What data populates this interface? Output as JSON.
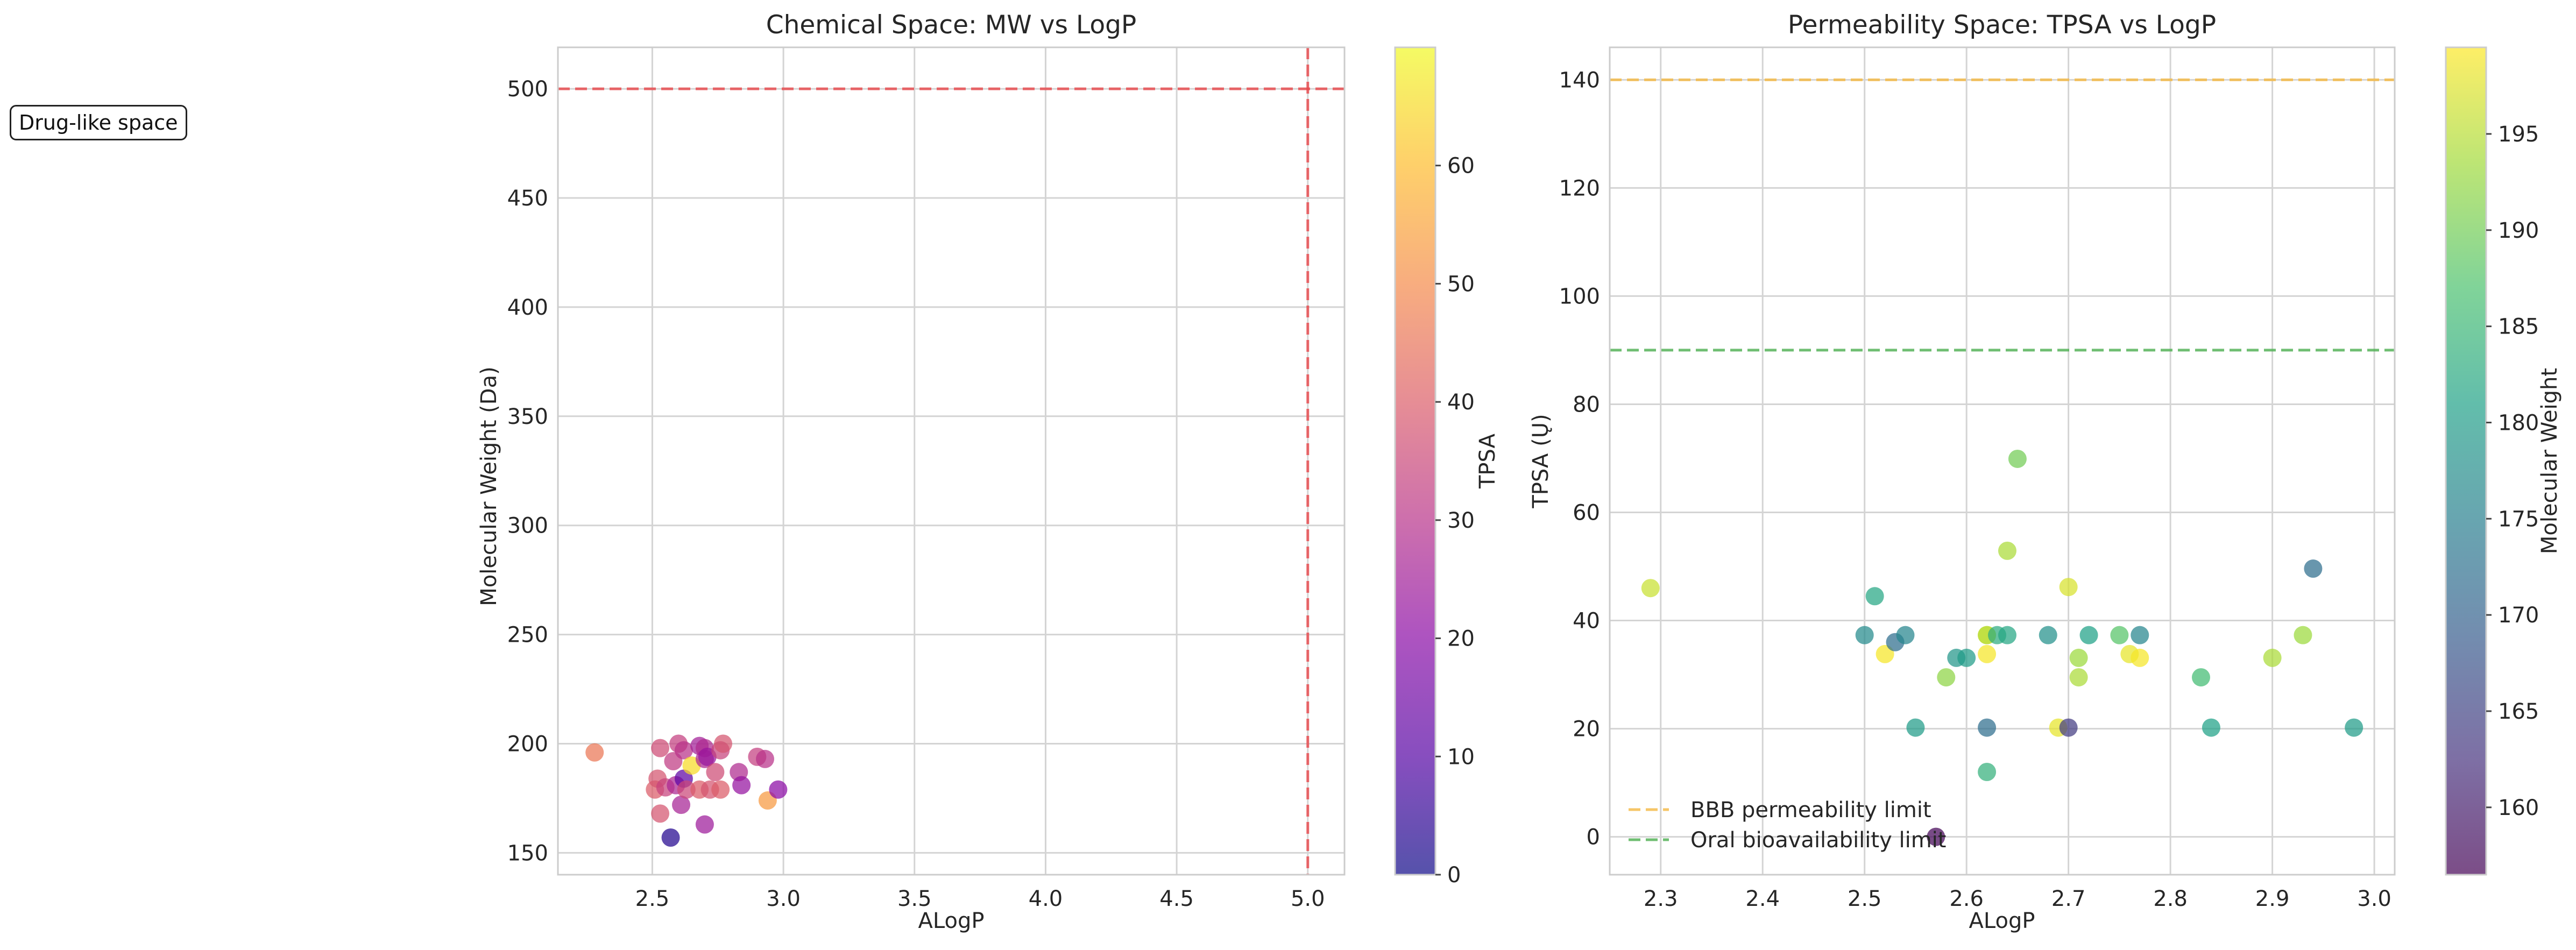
{
  "annotation": "Drug-like space",
  "chart_data": [
    {
      "type": "scatter",
      "title": "Chemical Space: MW vs LogP",
      "xlabel": "ALogP",
      "ylabel": "Molecular Weight (Da)",
      "xlim": [
        2.14,
        5.14
      ],
      "ylim": [
        140,
        519
      ],
      "xticks": [
        "2.5",
        "3.0",
        "3.5",
        "4.0",
        "4.5",
        "5.0"
      ],
      "yticks": [
        "150",
        "200",
        "250",
        "300",
        "350",
        "400",
        "450",
        "500"
      ],
      "grid": true,
      "colormap": "plasma",
      "colorbar": {
        "label": "TPSA",
        "range": [
          0,
          70
        ],
        "ticks": [
          "0",
          "10",
          "20",
          "30",
          "40",
          "50",
          "60"
        ]
      },
      "reference_lines": [
        {
          "orientation": "horizontal",
          "value": 500,
          "color": "#e8464a"
        },
        {
          "orientation": "vertical",
          "value": 5.0,
          "color": "#e8464a"
        }
      ],
      "points": [
        {
          "x": 2.28,
          "y": 196,
          "c": 46
        },
        {
          "x": 2.51,
          "y": 179,
          "c": 40
        },
        {
          "x": 2.52,
          "y": 184,
          "c": 38
        },
        {
          "x": 2.53,
          "y": 198,
          "c": 36
        },
        {
          "x": 2.53,
          "y": 168,
          "c": 38
        },
        {
          "x": 2.55,
          "y": 180,
          "c": 34
        },
        {
          "x": 2.57,
          "y": 157,
          "c": 3
        },
        {
          "x": 2.58,
          "y": 192,
          "c": 32
        },
        {
          "x": 2.59,
          "y": 181,
          "c": 27
        },
        {
          "x": 2.6,
          "y": 200,
          "c": 33
        },
        {
          "x": 2.61,
          "y": 172,
          "c": 26
        },
        {
          "x": 2.62,
          "y": 197,
          "c": 30
        },
        {
          "x": 2.62,
          "y": 184,
          "c": 12
        },
        {
          "x": 2.63,
          "y": 179,
          "c": 35
        },
        {
          "x": 2.65,
          "y": 190,
          "c": 65
        },
        {
          "x": 2.68,
          "y": 199,
          "c": 25
        },
        {
          "x": 2.68,
          "y": 179,
          "c": 40
        },
        {
          "x": 2.7,
          "y": 163,
          "c": 24
        },
        {
          "x": 2.7,
          "y": 198,
          "c": 28
        },
        {
          "x": 2.7,
          "y": 193,
          "c": 27
        },
        {
          "x": 2.71,
          "y": 194,
          "c": 23
        },
        {
          "x": 2.72,
          "y": 179,
          "c": 38
        },
        {
          "x": 2.74,
          "y": 187,
          "c": 36
        },
        {
          "x": 2.76,
          "y": 197,
          "c": 34
        },
        {
          "x": 2.77,
          "y": 200,
          "c": 38
        },
        {
          "x": 2.76,
          "y": 179,
          "c": 40
        },
        {
          "x": 2.83,
          "y": 187,
          "c": 28
        },
        {
          "x": 2.84,
          "y": 181,
          "c": 22
        },
        {
          "x": 2.9,
          "y": 194,
          "c": 33
        },
        {
          "x": 2.93,
          "y": 193,
          "c": 30
        },
        {
          "x": 2.94,
          "y": 174,
          "c": 53
        },
        {
          "x": 2.98,
          "y": 179,
          "c": 20
        }
      ]
    },
    {
      "type": "scatter",
      "title": "Permeability Space: TPSA vs LogP",
      "xlabel": "ALogP",
      "ylabel": "TPSA (Ų)",
      "xlim": [
        2.25,
        3.02
      ],
      "ylim": [
        -7,
        146
      ],
      "xticks": [
        "2.3",
        "2.4",
        "2.5",
        "2.6",
        "2.7",
        "2.8",
        "2.9",
        "3.0"
      ],
      "yticks": [
        "0",
        "20",
        "40",
        "60",
        "80",
        "100",
        "120",
        "140"
      ],
      "grid": true,
      "colormap": "viridis",
      "colorbar": {
        "label": "Molecular Weight",
        "range": [
          156.5,
          199.5
        ],
        "ticks": [
          "160",
          "165",
          "170",
          "175",
          "180",
          "185",
          "190",
          "195"
        ]
      },
      "reference_lines": [
        {
          "orientation": "horizontal",
          "value": 140,
          "color": "#f5b942",
          "label": "BBB permeability limit"
        },
        {
          "orientation": "horizontal",
          "value": 90,
          "color": "#4caf50",
          "label": "Oral bioavailability limit"
        }
      ],
      "legend": "lower-left",
      "points": [
        {
          "x": 2.29,
          "y": 46,
          "c": 196
        },
        {
          "x": 2.5,
          "y": 37.3,
          "c": 177
        },
        {
          "x": 2.51,
          "y": 44.5,
          "c": 182
        },
        {
          "x": 2.52,
          "y": 33.8,
          "c": 199
        },
        {
          "x": 2.53,
          "y": 36,
          "c": 172
        },
        {
          "x": 2.54,
          "y": 37.3,
          "c": 176
        },
        {
          "x": 2.55,
          "y": 20.2,
          "c": 180
        },
        {
          "x": 2.58,
          "y": 29.5,
          "c": 192
        },
        {
          "x": 2.59,
          "y": 33.1,
          "c": 179
        },
        {
          "x": 2.6,
          "y": 33.1,
          "c": 180
        },
        {
          "x": 2.57,
          "y": 0,
          "c": 157
        },
        {
          "x": 2.62,
          "y": 33.8,
          "c": 199
        },
        {
          "x": 2.62,
          "y": 37.3,
          "c": 196
        },
        {
          "x": 2.62,
          "y": 37.3,
          "c": 195
        },
        {
          "x": 2.62,
          "y": 20.2,
          "c": 172
        },
        {
          "x": 2.62,
          "y": 12,
          "c": 184
        },
        {
          "x": 2.63,
          "y": 37.3,
          "c": 183
        },
        {
          "x": 2.64,
          "y": 37.3,
          "c": 182
        },
        {
          "x": 2.64,
          "y": 52.9,
          "c": 194
        },
        {
          "x": 2.65,
          "y": 69.9,
          "c": 190
        },
        {
          "x": 2.68,
          "y": 37.3,
          "c": 178
        },
        {
          "x": 2.69,
          "y": 20.2,
          "c": 198
        },
        {
          "x": 2.7,
          "y": 20.2,
          "c": 164
        },
        {
          "x": 2.7,
          "y": 46.2,
          "c": 197
        },
        {
          "x": 2.71,
          "y": 29.5,
          "c": 194
        },
        {
          "x": 2.71,
          "y": 33.1,
          "c": 193
        },
        {
          "x": 2.72,
          "y": 37.3,
          "c": 181
        },
        {
          "x": 2.75,
          "y": 37.3,
          "c": 188
        },
        {
          "x": 2.76,
          "y": 33.8,
          "c": 198
        },
        {
          "x": 2.77,
          "y": 37.3,
          "c": 176
        },
        {
          "x": 2.77,
          "y": 33.1,
          "c": 199
        },
        {
          "x": 2.83,
          "y": 29.5,
          "c": 186
        },
        {
          "x": 2.84,
          "y": 20.2,
          "c": 181
        },
        {
          "x": 2.9,
          "y": 33.1,
          "c": 194
        },
        {
          "x": 2.93,
          "y": 37.3,
          "c": 193
        },
        {
          "x": 2.94,
          "y": 49.6,
          "c": 172
        },
        {
          "x": 2.98,
          "y": 20.2,
          "c": 180
        }
      ]
    }
  ]
}
